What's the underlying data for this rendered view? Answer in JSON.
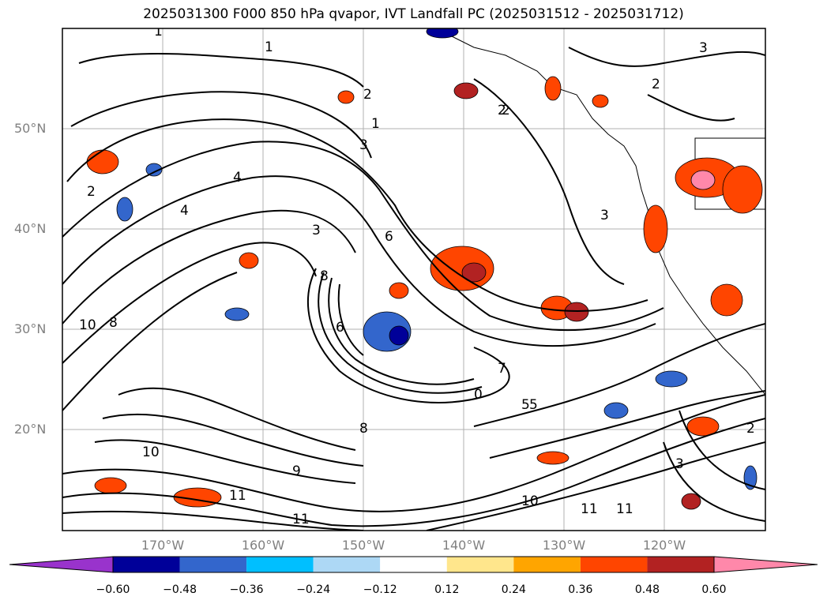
{
  "title": "2025031300 F000 850 hPa qvapor, IVT Landfall PC (2025031512 - 2025031712)",
  "lat_labels": [
    "50°N",
    "40°N",
    "30°N",
    "20°N"
  ],
  "lon_labels": [
    "170°W",
    "160°W",
    "150°W",
    "140°W",
    "130°W",
    "120°W"
  ],
  "colorbar": {
    "ticks": [
      "−0.60",
      "−0.48",
      "−0.36",
      "−0.24",
      "−0.12",
      "0.12",
      "0.24",
      "0.36",
      "0.48",
      "0.60"
    ],
    "colors": [
      "#9933cc",
      "#000099",
      "#3366cc",
      "#00bfff",
      "#add8f5",
      "#ffffff",
      "#ffe68c",
      "#ffa500",
      "#ff4500",
      "#b22222",
      "#ff88aa"
    ]
  },
  "contour_labels": [
    "1",
    "1",
    "1",
    "2",
    "2",
    "2",
    "2",
    "3",
    "3",
    "3",
    "3",
    "4",
    "4",
    "5",
    "6",
    "6",
    "7",
    "8",
    "8",
    "9",
    "10",
    "10",
    "11",
    "11",
    "11",
    "11",
    "3",
    "2",
    "2",
    "5",
    "0",
    "8",
    "10"
  ]
}
